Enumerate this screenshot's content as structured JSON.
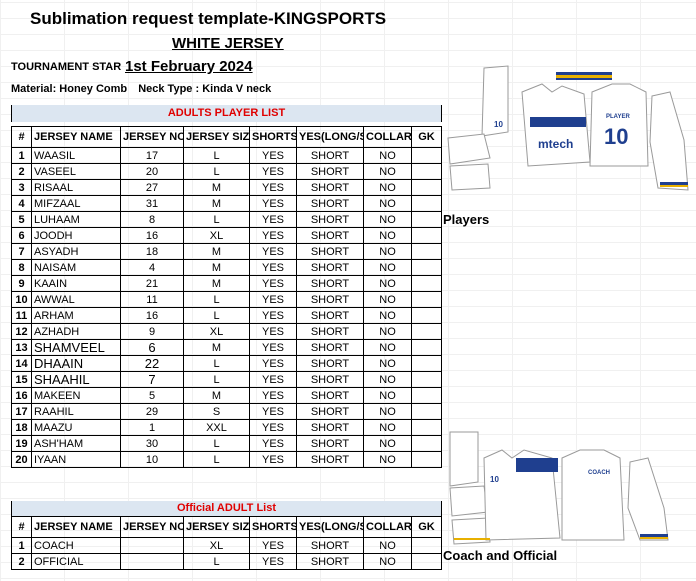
{
  "sheet": {
    "title": "Sublimation request template-KINGSPORTS",
    "subtitle": "WHITE JERSEY",
    "tournament_label": "TOURNAMENT STAR",
    "tournament_date": "1st February 2024",
    "material": "Material: Honey Comb",
    "neck_type": "Neck Type : Kinda V neck"
  },
  "adults": {
    "banner": "ADULTS PLAYER LIST",
    "headers": [
      "#",
      "JERSEY NAME",
      "JERSEY NO",
      "JERSEY SIZE",
      "SHORTS",
      "YES(LONG/SH",
      "COLLAR",
      "GK"
    ],
    "rows": [
      [
        "1",
        "WAASIL",
        "17",
        "L",
        "YES",
        "SHORT",
        "NO",
        ""
      ],
      [
        "2",
        "VASEEL",
        "20",
        "L",
        "YES",
        "SHORT",
        "NO",
        ""
      ],
      [
        "3",
        "RISAAL",
        "27",
        "M",
        "YES",
        "SHORT",
        "NO",
        ""
      ],
      [
        "4",
        "MIFZAAL",
        "31",
        "M",
        "YES",
        "SHORT",
        "NO",
        ""
      ],
      [
        "5",
        "LUHAAM",
        "8",
        "L",
        "YES",
        "SHORT",
        "NO",
        ""
      ],
      [
        "6",
        "JOODH",
        "16",
        "XL",
        "YES",
        "SHORT",
        "NO",
        ""
      ],
      [
        "7",
        "ASYADH",
        "18",
        "M",
        "YES",
        "SHORT",
        "NO",
        ""
      ],
      [
        "8",
        "NAISAM",
        "4",
        "M",
        "YES",
        "SHORT",
        "NO",
        ""
      ],
      [
        "9",
        "KAAIN",
        "21",
        "M",
        "YES",
        "SHORT",
        "NO",
        ""
      ],
      [
        "10",
        "AWWAL",
        "11",
        "L",
        "YES",
        "SHORT",
        "NO",
        ""
      ],
      [
        "11",
        "ARHAM",
        "16",
        "L",
        "YES",
        "SHORT",
        "NO",
        ""
      ],
      [
        "12",
        "AZHADH",
        "9",
        "XL",
        "YES",
        "SHORT",
        "NO",
        ""
      ],
      [
        "13",
        "SHAMVEEL",
        "6",
        "M",
        "YES",
        "SHORT",
        "NO",
        ""
      ],
      [
        "14",
        "DHAAIN",
        "22",
        "L",
        "YES",
        "SHORT",
        "NO",
        ""
      ],
      [
        "15",
        "SHAAHIL",
        "7",
        "L",
        "YES",
        "SHORT",
        "NO",
        ""
      ],
      [
        "16",
        "MAKEEN",
        "5",
        "M",
        "YES",
        "SHORT",
        "NO",
        ""
      ],
      [
        "17",
        "RAAHIL",
        "29",
        "S",
        "YES",
        "SHORT",
        "NO",
        ""
      ],
      [
        "18",
        "MAAZU",
        "1",
        "XXL",
        "YES",
        "SHORT",
        "NO",
        ""
      ],
      [
        "19",
        "ASH'HAM",
        "30",
        "L",
        "YES",
        "SHORT",
        "NO",
        ""
      ],
      [
        "20",
        "IYAAN",
        "10",
        "L",
        "YES",
        "SHORT",
        "NO",
        ""
      ]
    ]
  },
  "officials": {
    "banner": "Official ADULT List",
    "headers": [
      "#",
      "JERSEY NAME",
      "JERSEY NO",
      "JERSEY SIZE",
      "SHORTS",
      "YES(LONG/SH",
      "COLLAR",
      "GK"
    ],
    "rows": [
      [
        "1",
        "COACH",
        "",
        "XL",
        "YES",
        "SHORT",
        "NO",
        ""
      ],
      [
        "2",
        "OFFICIAL",
        "",
        "L",
        "YES",
        "SHORT",
        "NO",
        ""
      ]
    ]
  },
  "mockups": {
    "players_caption": "Players",
    "officials_caption": "Coach and Official",
    "front_number": "10",
    "back_label": "PLAYER",
    "back_number": "10",
    "sponsor": "mtech",
    "officials_front_number": "10",
    "officials_back_label": "COACH",
    "colors": {
      "navy": "#1f3f8f",
      "gold": "#e8b000",
      "outline": "#9a9a9a"
    }
  }
}
